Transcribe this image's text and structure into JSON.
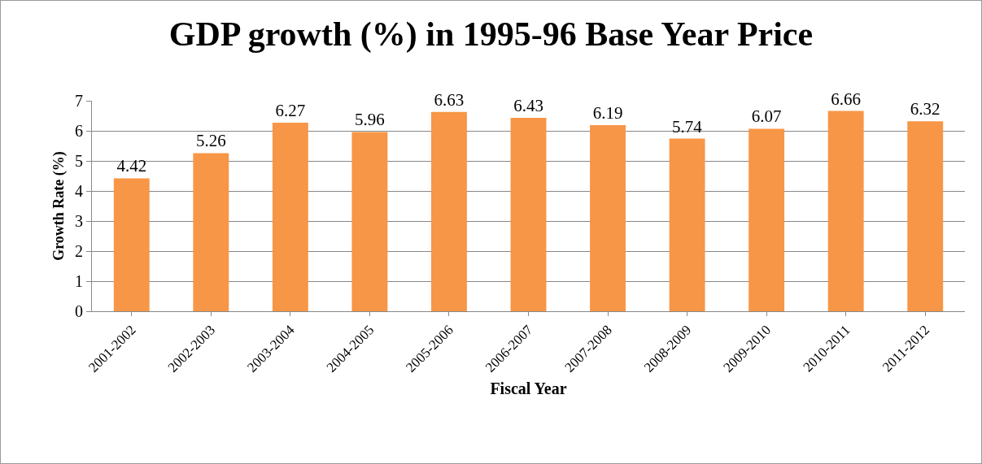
{
  "chart_data": {
    "type": "bar",
    "title": "GDP growth (%) in 1995-96 Base Year Price",
    "xlabel": "Fiscal Year",
    "ylabel": "Growth Rate (%)",
    "categories": [
      "2001-2002",
      "2002-2003",
      "2003-2004",
      "2004-2005",
      "2005-2006",
      "2006-2007",
      "2007-2008",
      "2008-2009",
      "2009-2010",
      "2010-2011",
      "2011-2012"
    ],
    "values": [
      4.42,
      5.26,
      6.27,
      5.96,
      6.63,
      6.43,
      6.19,
      5.74,
      6.07,
      6.66,
      6.32
    ],
    "color": "#f79646",
    "ylim": [
      0,
      7
    ],
    "yticks": [
      0,
      1,
      2,
      3,
      4,
      5,
      6,
      7
    ],
    "grid": "y",
    "data_labels": true,
    "legend": false
  }
}
